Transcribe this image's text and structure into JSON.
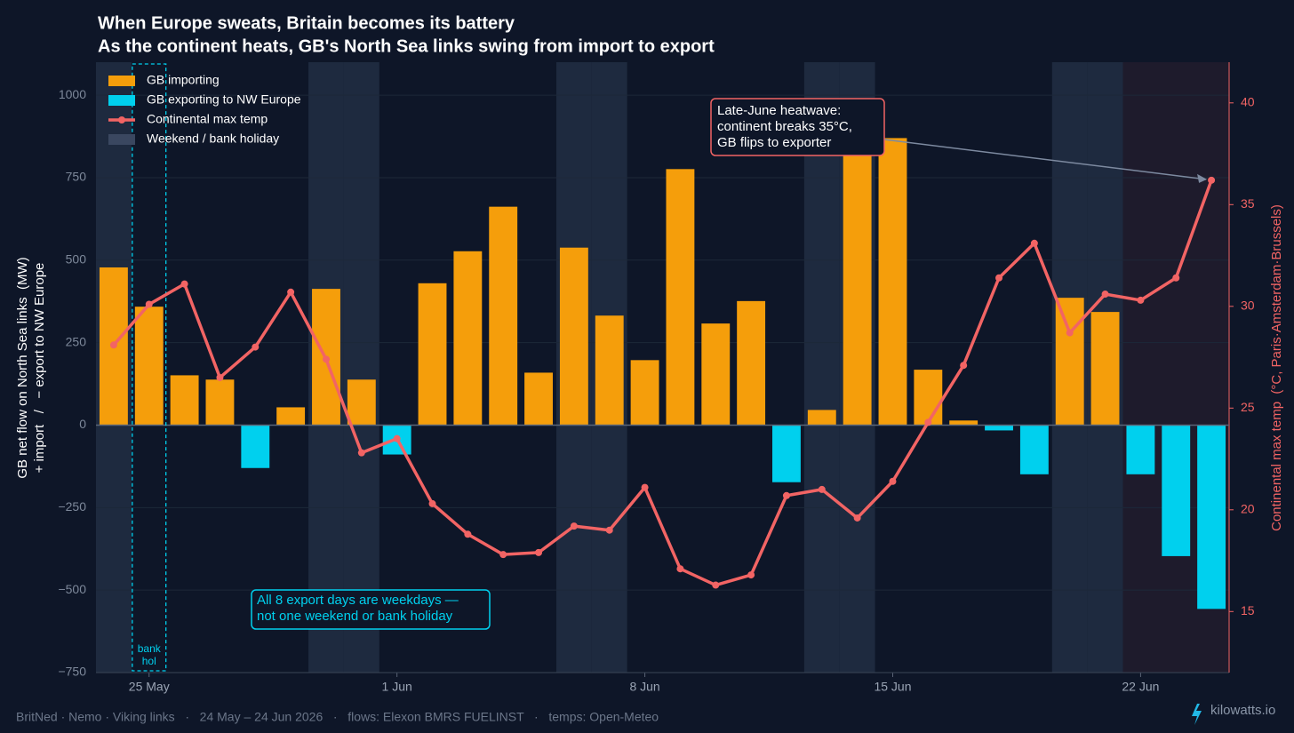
{
  "chart_data": {
    "type": "bar_line",
    "title": [
      "When Europe sweats, Britain becomes its battery",
      "As the continent heats, GB's North Sea links swing from import to export"
    ],
    "ylabel": [
      "GB net flow on North Sea links  (MW)",
      "+ import   /   − export to NW Europe"
    ],
    "y2label": "Continental max temp  (°C, Paris·Amsterdam·Brussels)",
    "categories": [
      null,
      "25 May",
      null,
      null,
      null,
      null,
      null,
      null,
      "1 Jun",
      null,
      null,
      null,
      null,
      null,
      null,
      "8 Jun",
      null,
      null,
      null,
      null,
      null,
      null,
      "15 Jun",
      null,
      null,
      null,
      null,
      null,
      null,
      "22 Jun",
      null,
      null
    ],
    "series": [
      {
        "type": "bar",
        "color_positive": "#f59e0b",
        "color_negative": "#00d0ee",
        "values": [
          478,
          359,
          151,
          138,
          -130,
          54,
          413,
          138,
          -89,
          430,
          527,
          662,
          159,
          538,
          332,
          197,
          776,
          308,
          376,
          -173,
          46,
          890,
          870,
          168,
          14,
          -16,
          -149,
          386,
          343,
          -149,
          -397,
          -557
        ]
      },
      {
        "type": "line",
        "name": "Continental max temp",
        "axis": "y2",
        "color": "#f26464",
        "values": [
          28.1,
          30.1,
          31.1,
          26.5,
          28.0,
          30.7,
          27.4,
          22.8,
          23.5,
          20.3,
          18.8,
          17.8,
          17.9,
          19.2,
          19.0,
          21.1,
          17.1,
          16.3,
          16.8,
          20.7,
          21.0,
          19.6,
          21.4,
          24.3,
          27.1,
          31.4,
          33.1,
          28.7,
          30.6,
          30.3,
          31.4,
          36.2
        ]
      }
    ],
    "legend": [
      "GB importing",
      "GB exporting to NW Europe",
      "Continental max temp",
      "Weekend / bank holiday"
    ],
    "shading_color": "#1e2a3f",
    "weekend_indices": [
      0,
      6,
      7,
      13,
      14,
      20,
      21,
      27,
      28
    ],
    "bank_holiday_index": 1,
    "bank_holiday_label": [
      "bank",
      "hol"
    ],
    "heatwave_start_index": 29,
    "ylim": [
      -750,
      1100
    ],
    "yticks": [
      {
        "value": -750,
        "label": "−750"
      },
      {
        "value": -500,
        "label": "−500"
      },
      {
        "value": -250,
        "label": "−250"
      },
      0,
      250,
      500,
      750,
      1000
    ],
    "y2lim": [
      12,
      42
    ],
    "y2ticks": [
      15,
      20,
      25,
      30,
      35,
      40
    ],
    "grid": true,
    "annotations": [
      {
        "text": [
          "Late-June heatwave:",
          "continent breaks 35°C,",
          "GB flips to exporter"
        ],
        "target_index": 31
      },
      {
        "text": [
          "All 8 export days are weekdays —",
          "not one weekend or bank holiday"
        ]
      }
    ],
    "footer": "BritNed · Nemo · Viking links   ·   24 May – 24 Jun 2026   ·   flows: Elexon BMRS FUELINST   ·   temps: Open-Meteo",
    "brand": "kilowatts.io"
  }
}
